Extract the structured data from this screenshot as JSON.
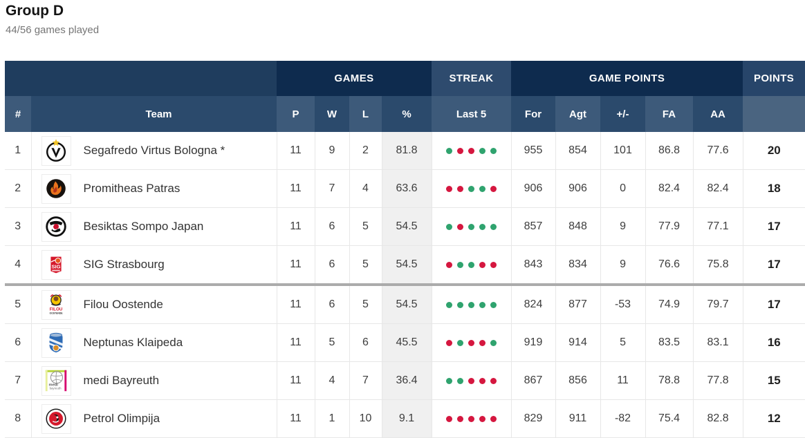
{
  "page": {
    "title": "Group D",
    "subtitle": "44/56 games played"
  },
  "colors": {
    "win_dot": "#2fa36e",
    "loss_dot": "#d5173f",
    "header_dark_navy": "#0e2b4e",
    "header_light_navy": "#2e4b6e",
    "cutoff_separator": "#ababab",
    "pct_column_bg": "#f0f0f0"
  },
  "table": {
    "groups": {
      "games": "GAMES",
      "streak": "STREAK",
      "game_points": "GAME POINTS",
      "points": "POINTS"
    },
    "headers": {
      "rank": "#",
      "team": "Team",
      "played": "P",
      "wins": "W",
      "losses": "L",
      "pct": "%",
      "last5": "Last 5",
      "for": "For",
      "against": "Agt",
      "diff": "+/-",
      "fa": "FA",
      "aa": "AA"
    },
    "rows": [
      {
        "rank": "1",
        "team": "Segafredo Virtus Bologna *",
        "logo": "virtus-bologna-logo",
        "p": "11",
        "w": "9",
        "l": "2",
        "pct": "81.8",
        "last5": [
          "W",
          "L",
          "L",
          "W",
          "W"
        ],
        "for": "955",
        "against": "854",
        "diff": "101",
        "fa": "86.8",
        "aa": "77.6",
        "points": "20"
      },
      {
        "rank": "2",
        "team": "Promitheas Patras",
        "logo": "promitheas-patras-logo",
        "p": "11",
        "w": "7",
        "l": "4",
        "pct": "63.6",
        "last5": [
          "L",
          "L",
          "W",
          "W",
          "L"
        ],
        "for": "906",
        "against": "906",
        "diff": "0",
        "fa": "82.4",
        "aa": "82.4",
        "points": "18"
      },
      {
        "rank": "3",
        "team": "Besiktas Sompo Japan",
        "logo": "besiktas-logo",
        "p": "11",
        "w": "6",
        "l": "5",
        "pct": "54.5",
        "last5": [
          "W",
          "L",
          "W",
          "W",
          "W"
        ],
        "for": "857",
        "against": "848",
        "diff": "9",
        "fa": "77.9",
        "aa": "77.1",
        "points": "17"
      },
      {
        "rank": "4",
        "team": "SIG Strasbourg",
        "logo": "sig-strasbourg-logo",
        "p": "11",
        "w": "6",
        "l": "5",
        "pct": "54.5",
        "last5": [
          "L",
          "W",
          "W",
          "L",
          "L"
        ],
        "for": "843",
        "against": "834",
        "diff": "9",
        "fa": "76.6",
        "aa": "75.8",
        "points": "17"
      },
      {
        "rank": "5",
        "team": "Filou Oostende",
        "logo": "filou-oostende-logo",
        "p": "11",
        "w": "6",
        "l": "5",
        "pct": "54.5",
        "last5": [
          "W",
          "W",
          "W",
          "W",
          "W"
        ],
        "for": "824",
        "against": "877",
        "diff": "-53",
        "fa": "74.9",
        "aa": "79.7",
        "points": "17"
      },
      {
        "rank": "6",
        "team": "Neptunas Klaipeda",
        "logo": "neptunas-klaipeda-logo",
        "p": "11",
        "w": "5",
        "l": "6",
        "pct": "45.5",
        "last5": [
          "L",
          "W",
          "L",
          "L",
          "W"
        ],
        "for": "919",
        "against": "914",
        "diff": "5",
        "fa": "83.5",
        "aa": "83.1",
        "points": "16"
      },
      {
        "rank": "7",
        "team": "medi Bayreuth",
        "logo": "medi-bayreuth-logo",
        "p": "11",
        "w": "4",
        "l": "7",
        "pct": "36.4",
        "last5": [
          "W",
          "W",
          "L",
          "L",
          "L"
        ],
        "for": "867",
        "against": "856",
        "diff": "11",
        "fa": "78.8",
        "aa": "77.8",
        "points": "15"
      },
      {
        "rank": "8",
        "team": "Petrol Olimpija",
        "logo": "petrol-olimpija-logo",
        "p": "11",
        "w": "1",
        "l": "10",
        "pct": "9.1",
        "last5": [
          "L",
          "L",
          "L",
          "L",
          "L"
        ],
        "for": "829",
        "against": "911",
        "diff": "-82",
        "fa": "75.4",
        "aa": "82.8",
        "points": "12"
      }
    ],
    "cutoff_after_rank": 4
  }
}
